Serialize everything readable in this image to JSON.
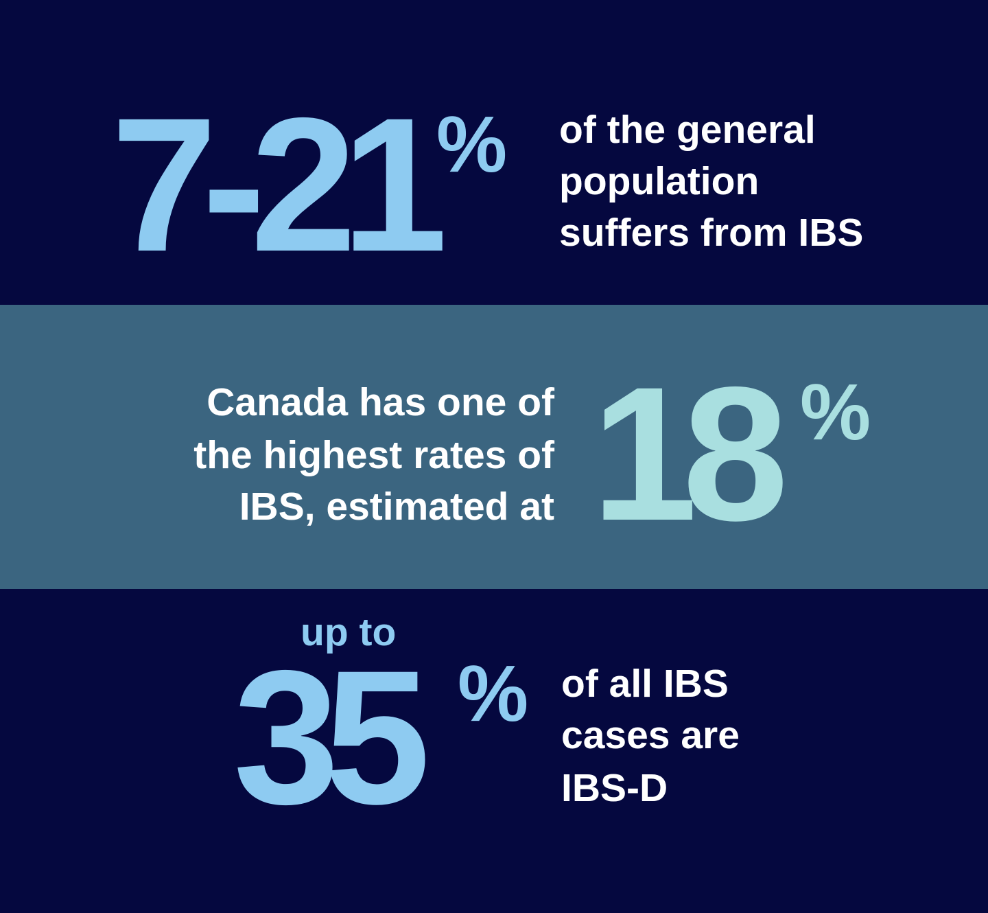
{
  "sections": [
    {
      "stat": "7-21",
      "unit": "%",
      "lines": [
        "of the general",
        "population",
        "suffers from IBS"
      ]
    },
    {
      "lines": [
        "Canada has one of",
        "the highest rates of",
        "IBS, estimated at"
      ],
      "stat": "18",
      "unit": "%"
    },
    {
      "prefix": "up to",
      "stat": "35",
      "unit": "%",
      "lines": [
        "of all IBS",
        "cases are",
        "IBS-D"
      ]
    }
  ]
}
